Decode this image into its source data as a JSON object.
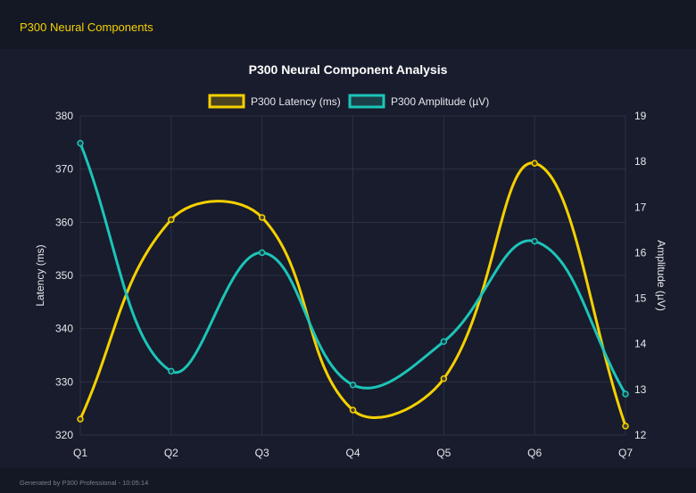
{
  "page": {
    "title": "P300 Neural Components",
    "footer": "Generated by P300 Professional - 10:05:14"
  },
  "chart_data": {
    "type": "line",
    "title": "P300 Neural Component Analysis",
    "categories": [
      "Q1",
      "Q2",
      "Q3",
      "Q4",
      "Q5",
      "Q6",
      "Q7"
    ],
    "series": [
      {
        "name": "P300 Latency (ms)",
        "axis": "left",
        "color": "#f5d000",
        "values": [
          323,
          360.5,
          360.9,
          324.7,
          330.6,
          371.1,
          321.7
        ]
      },
      {
        "name": "P300 Amplitude (µV)",
        "axis": "right",
        "color": "#1cc4b8",
        "values": [
          18.4,
          13.4,
          16.0,
          13.1,
          14.05,
          16.25,
          12.9
        ]
      }
    ],
    "ylabel": "Latency (ms)",
    "y2label": "Amplitude (µV)",
    "ylim": [
      320,
      380
    ],
    "y2lim": [
      12,
      19
    ],
    "yticks": [
      "320",
      "330",
      "340",
      "350",
      "360",
      "370",
      "380"
    ],
    "y2ticks": [
      "12",
      "13",
      "14",
      "15",
      "16",
      "17",
      "18",
      "19"
    ],
    "grid": true,
    "legend": "top",
    "smooth": true
  }
}
